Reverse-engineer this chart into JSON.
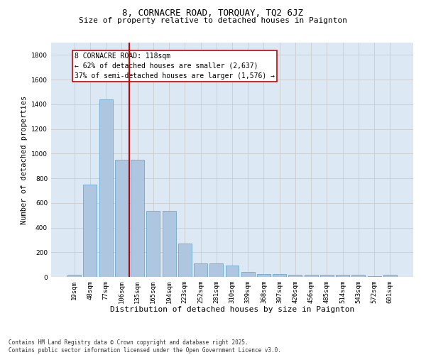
{
  "title": "8, CORNACRE ROAD, TORQUAY, TQ2 6JZ",
  "subtitle": "Size of property relative to detached houses in Paignton",
  "xlabel": "Distribution of detached houses by size in Paignton",
  "ylabel": "Number of detached properties",
  "categories": [
    "19sqm",
    "48sqm",
    "77sqm",
    "106sqm",
    "135sqm",
    "165sqm",
    "194sqm",
    "223sqm",
    "252sqm",
    "281sqm",
    "310sqm",
    "339sqm",
    "368sqm",
    "397sqm",
    "426sqm",
    "456sqm",
    "485sqm",
    "514sqm",
    "543sqm",
    "572sqm",
    "601sqm"
  ],
  "values": [
    20,
    748,
    1440,
    950,
    950,
    535,
    535,
    270,
    110,
    110,
    95,
    40,
    25,
    25,
    15,
    15,
    15,
    20,
    15,
    5,
    15
  ],
  "bar_color": "#aec6df",
  "bar_edgecolor": "#6aaad4",
  "vline_x": 3.5,
  "vline_color": "#cc0000",
  "annotation_text": "8 CORNACRE ROAD: 118sqm\n← 62% of detached houses are smaller (2,637)\n37% of semi-detached houses are larger (1,576) →",
  "annotation_box_color": "#cc0000",
  "ylim": [
    0,
    1900
  ],
  "yticks": [
    0,
    200,
    400,
    600,
    800,
    1000,
    1200,
    1400,
    1600,
    1800
  ],
  "grid_color": "#cccccc",
  "bg_color": "#dce9f5",
  "footer_text": "Contains HM Land Registry data © Crown copyright and database right 2025.\nContains public sector information licensed under the Open Government Licence v3.0.",
  "title_fontsize": 9,
  "subtitle_fontsize": 8,
  "xlabel_fontsize": 8,
  "ylabel_fontsize": 7.5,
  "tick_fontsize": 6.5,
  "annotation_fontsize": 7,
  "footer_fontsize": 5.5
}
